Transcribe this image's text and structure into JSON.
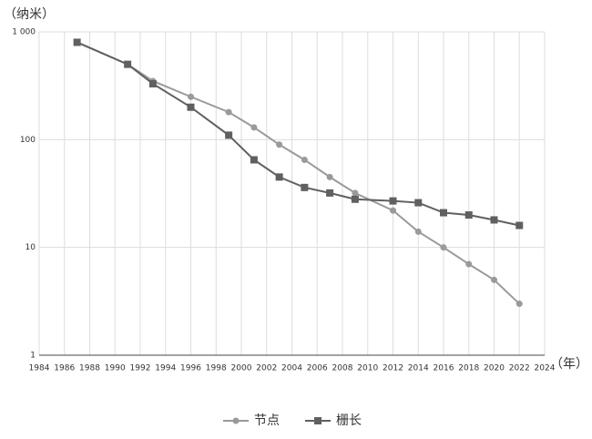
{
  "chart_data": {
    "type": "line",
    "y_label": "（纳米）",
    "x_label": "（年）",
    "yscale": "log",
    "grid": true,
    "legend": "bottom",
    "xlim": [
      1984,
      2024
    ],
    "xticks": [
      1984,
      1986,
      1988,
      1990,
      1992,
      1994,
      1996,
      1998,
      2000,
      2002,
      2004,
      2006,
      2008,
      2010,
      2012,
      2014,
      2016,
      2018,
      2020,
      2022,
      2024
    ],
    "ylim": [
      1,
      1000
    ],
    "yticks": [
      1,
      10,
      100,
      {
        "value": 1000,
        "label": "1 000"
      }
    ],
    "series": [
      {
        "name": "节点",
        "color": "#9a9a9a",
        "marker": "circle",
        "x": [
          1987,
          1991,
          1993,
          1996,
          1999,
          2001,
          2003,
          2005,
          2007,
          2009,
          2012,
          2014,
          2016,
          2018,
          2020,
          2022
        ],
        "values": [
          800,
          500,
          350,
          250,
          180,
          130,
          90,
          65,
          45,
          32,
          22,
          14,
          10,
          7,
          5,
          3
        ]
      },
      {
        "name": "栅长",
        "color": "#606060",
        "marker": "square",
        "x": [
          1987,
          1991,
          1993,
          1996,
          1999,
          2001,
          2003,
          2005,
          2007,
          2009,
          2012,
          2014,
          2016,
          2018,
          2020,
          2022
        ],
        "values": [
          800,
          500,
          330,
          200,
          110,
          65,
          45,
          36,
          32,
          28,
          27,
          26,
          21,
          20,
          18,
          16
        ]
      }
    ]
  }
}
